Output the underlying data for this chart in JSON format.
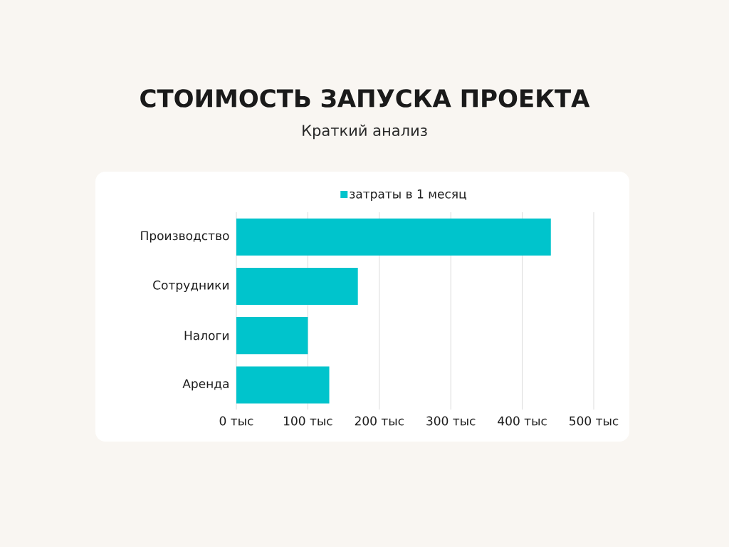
{
  "chart_data": {
    "type": "bar",
    "orientation": "horizontal",
    "title": "СТОИМОСТЬ ЗАПУСКА ПРОЕКТА",
    "subtitle": "Краткий анализ",
    "categories": [
      "Производство",
      "Сотрудники",
      "Налоги",
      "Аренда"
    ],
    "series": [
      {
        "name": "затраты в 1 месяц",
        "color": "#00c4cc",
        "values": [
          440,
          170,
          100,
          130
        ]
      }
    ],
    "xlim": [
      0,
      500
    ],
    "xticks": [
      {
        "value": 0,
        "label": "0 тыс"
      },
      {
        "value": 100,
        "label": "100 тыс"
      },
      {
        "value": 200,
        "label": "200 тыс"
      },
      {
        "value": 300,
        "label": "300 тыс"
      },
      {
        "value": 400,
        "label": "400 тыс"
      },
      {
        "value": 500,
        "label": "500 тыс"
      }
    ],
    "grid": "x",
    "legend": "top"
  }
}
